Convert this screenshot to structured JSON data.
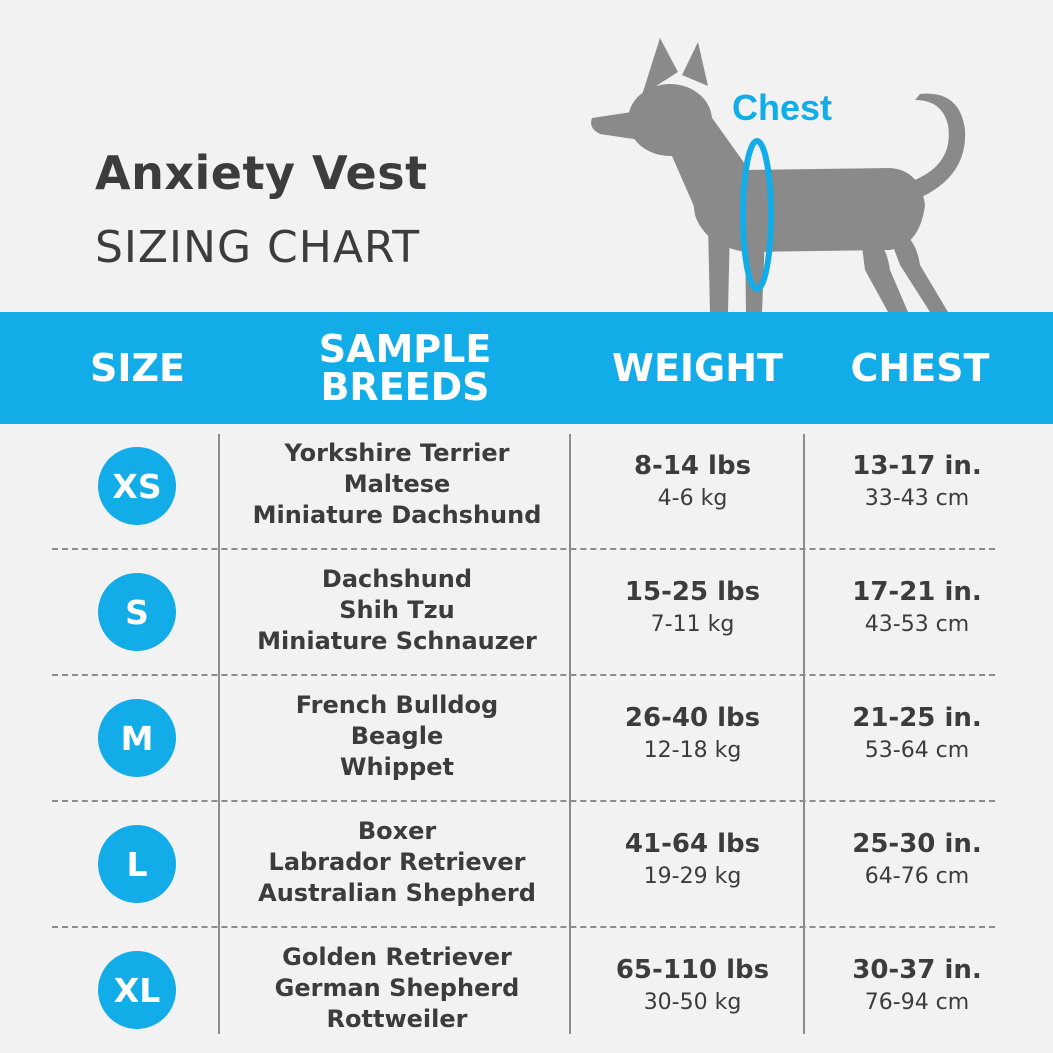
{
  "title": {
    "main": "Anxiety Vest",
    "sub": "SIZING CHART"
  },
  "illustration": {
    "chest_label": "Chest",
    "accent": "#12ade8",
    "dog_color": "#8a8a8a"
  },
  "columns": {
    "size": "SIZE",
    "breeds_line1": "SAMPLE",
    "breeds_line2": "BREEDS",
    "weight": "WEIGHT",
    "chest": "CHEST"
  },
  "rows": [
    {
      "size": "XS",
      "breeds": [
        "Yorkshire Terrier",
        "Maltese",
        "Miniature Dachshund"
      ],
      "weight_lbs": "8-14 lbs",
      "weight_kg": "4-6 kg",
      "chest_in": "13-17 in.",
      "chest_cm": "33-43 cm"
    },
    {
      "size": "S",
      "breeds": [
        "Dachshund",
        "Shih Tzu",
        "Miniature Schnauzer"
      ],
      "weight_lbs": "15-25 lbs",
      "weight_kg": "7-11 kg",
      "chest_in": "17-21 in.",
      "chest_cm": "43-53 cm"
    },
    {
      "size": "M",
      "breeds": [
        "French Bulldog",
        "Beagle",
        "Whippet"
      ],
      "weight_lbs": "26-40 lbs",
      "weight_kg": "12-18 kg",
      "chest_in": "21-25 in.",
      "chest_cm": "53-64 cm"
    },
    {
      "size": "L",
      "breeds": [
        "Boxer",
        "Labrador Retriever",
        "Australian Shepherd"
      ],
      "weight_lbs": "41-64 lbs",
      "weight_kg": "19-29 kg",
      "chest_in": "25-30 in.",
      "chest_cm": "64-76 cm"
    },
    {
      "size": "XL",
      "breeds": [
        "Golden Retriever",
        "German Shepherd",
        "Rottweiler"
      ],
      "weight_lbs": "65-110 lbs",
      "weight_kg": "30-50 kg",
      "chest_in": "30-37 in.",
      "chest_cm": "76-94 cm"
    }
  ]
}
